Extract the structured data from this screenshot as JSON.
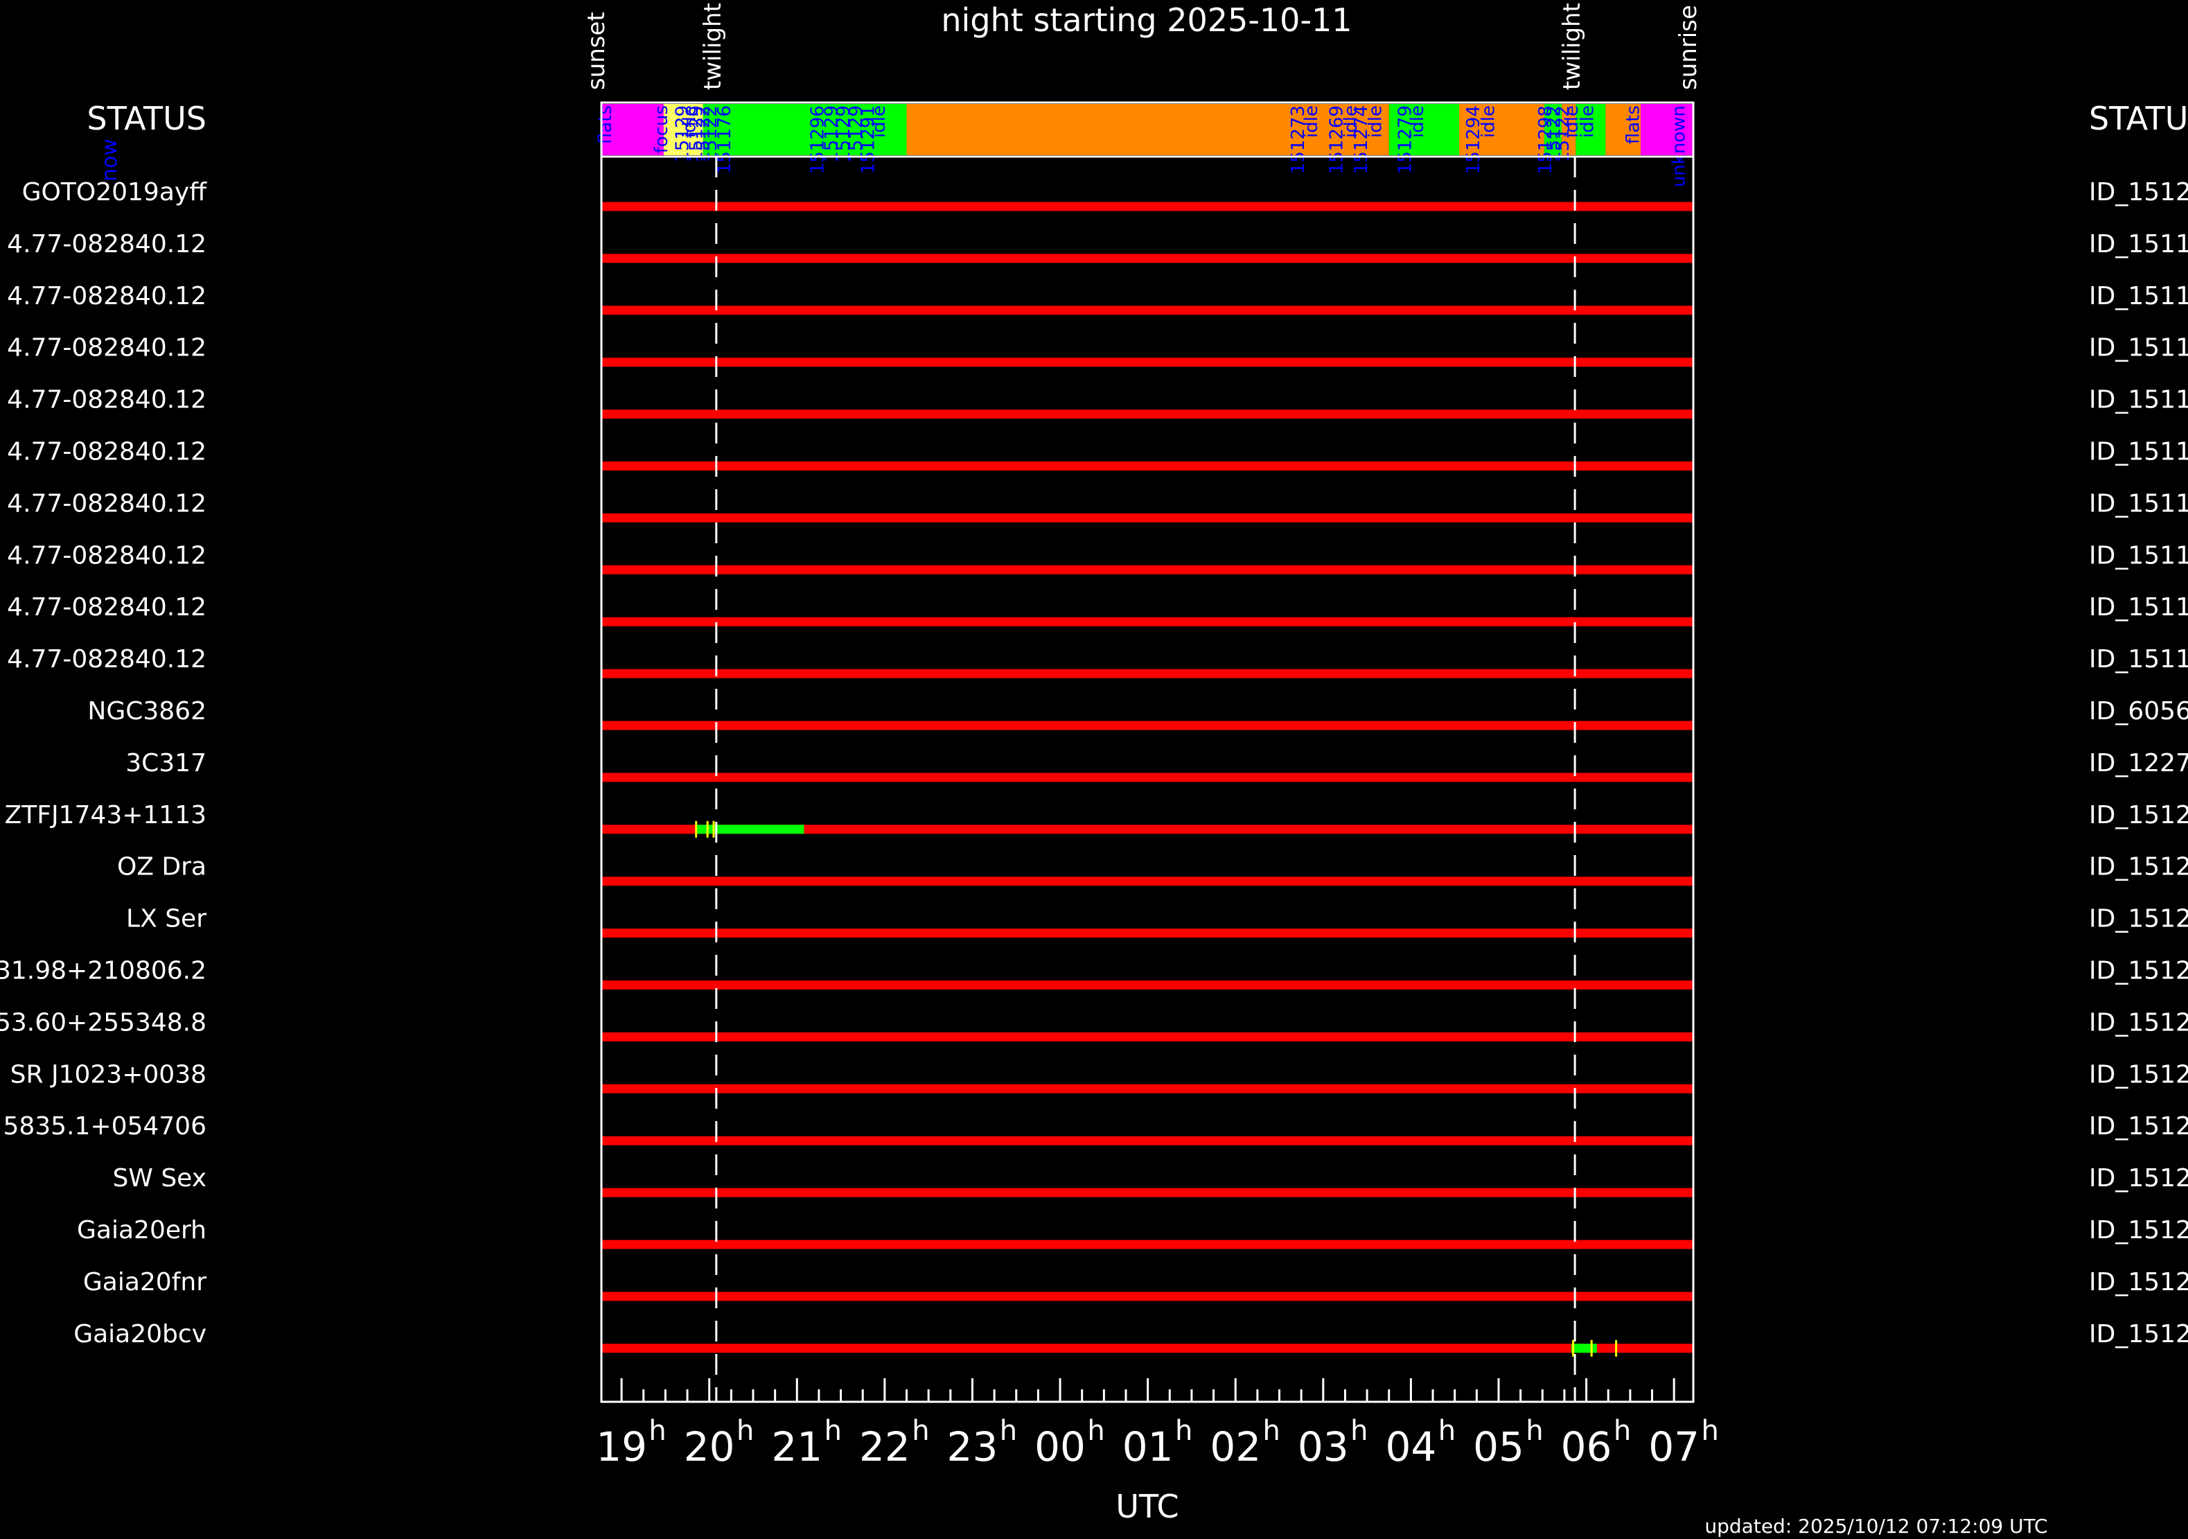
{
  "title": "night starting 2025-10-11",
  "left_header": "STATUS",
  "right_header": "STATU",
  "status_label": "now",
  "updated": "updated: 2025/10/12 07:12:09 UTC",
  "xlabel": "UTC",
  "top_labels": {
    "sunset": "sunset",
    "twilight_evening": "twilight",
    "twilight_morning": "twilight",
    "sunrise": "sunrise"
  },
  "colors": {
    "background": "#000000",
    "frame": "#ffffff",
    "target_line": "#ff0000",
    "observed": "#00ff00",
    "marker": "#ffff00",
    "flats": "#ff00ff",
    "focus": "#ffff66",
    "observing": "#00ff00",
    "idle": "#ff8800",
    "annotation": "#0000ff"
  },
  "chart_data": {
    "type": "timeline",
    "x_unit": "hours UTC from 19h",
    "x_range": [
      18.77,
      31.22
    ],
    "x_ticks": [
      {
        "hour": 19,
        "label": "19"
      },
      {
        "hour": 20,
        "label": "20"
      },
      {
        "hour": 21,
        "label": "21"
      },
      {
        "hour": 22,
        "label": "22"
      },
      {
        "hour": 23,
        "label": "23"
      },
      {
        "hour": 24,
        "label": "00"
      },
      {
        "hour": 25,
        "label": "01"
      },
      {
        "hour": 26,
        "label": "02"
      },
      {
        "hour": 27,
        "label": "03"
      },
      {
        "hour": 28,
        "label": "04"
      },
      {
        "hour": 29,
        "label": "05"
      },
      {
        "hour": 30,
        "label": "06"
      },
      {
        "hour": 31,
        "label": "07"
      }
    ],
    "tick_suffix": "h",
    "twilight_hours": [
      20.08,
      29.87
    ],
    "status_bar": [
      {
        "start": 18.77,
        "end": 19.48,
        "state": "flats"
      },
      {
        "start": 19.48,
        "end": 19.93,
        "state": "focus"
      },
      {
        "start": 19.93,
        "end": 22.25,
        "state": "observing"
      },
      {
        "start": 22.25,
        "end": 27.75,
        "state": "idle"
      },
      {
        "start": 27.75,
        "end": 28.55,
        "state": "observing"
      },
      {
        "start": 28.55,
        "end": 29.52,
        "state": "idle"
      },
      {
        "start": 29.52,
        "end": 29.72,
        "state": "observing"
      },
      {
        "start": 29.72,
        "end": 29.88,
        "state": "idle"
      },
      {
        "start": 29.88,
        "end": 30.22,
        "state": "observing"
      },
      {
        "start": 30.22,
        "end": 30.62,
        "state": "idle"
      },
      {
        "start": 30.62,
        "end": 31.22,
        "state": "flats"
      }
    ],
    "status_annotations": [
      {
        "hour": 18.88,
        "text": "flats",
        "color": "#0000ff"
      },
      {
        "hour": 19.52,
        "text": "focus",
        "color": "#0000ff"
      },
      {
        "hour": 19.76,
        "text": "15129",
        "color": "#0000ff"
      },
      {
        "hour": 19.84,
        "text": "idle",
        "color": "#0000ff"
      },
      {
        "hour": 19.92,
        "text": "15129",
        "color": "#0000ff"
      },
      {
        "hour": 20.0,
        "text": "15122",
        "color": "#0000ff"
      },
      {
        "hour": 20.08,
        "text": "15122",
        "color": "#0000ff"
      },
      {
        "hour": 20.24,
        "text": "151176",
        "color": "#0000ff"
      },
      {
        "hour": 21.3,
        "text": "151296",
        "color": "#0000ff"
      },
      {
        "hour": 21.46,
        "text": "15129",
        "color": "#0000ff"
      },
      {
        "hour": 21.6,
        "text": "15129",
        "color": "#0000ff"
      },
      {
        "hour": 21.74,
        "text": "15129",
        "color": "#0000ff"
      },
      {
        "hour": 21.88,
        "text": "151291",
        "color": "#0000ff"
      },
      {
        "hour": 22.0,
        "text": "idle",
        "color": "#0000ff"
      },
      {
        "hour": 26.78,
        "text": "151273",
        "color": "#0000ff"
      },
      {
        "hour": 26.93,
        "text": "idle",
        "color": "#0000ff"
      },
      {
        "hour": 27.22,
        "text": "151269",
        "color": "#0000ff"
      },
      {
        "hour": 27.38,
        "text": "idle",
        "color": "#0000ff"
      },
      {
        "hour": 27.5,
        "text": "151274",
        "color": "#0000ff"
      },
      {
        "hour": 27.66,
        "text": "idle",
        "color": "#0000ff"
      },
      {
        "hour": 28.0,
        "text": "151279",
        "color": "#0000ff"
      },
      {
        "hour": 28.14,
        "text": "idle",
        "color": "#0000ff"
      },
      {
        "hour": 28.78,
        "text": "151294",
        "color": "#0000ff"
      },
      {
        "hour": 28.95,
        "text": "idle",
        "color": "#0000ff"
      },
      {
        "hour": 29.6,
        "text": "151298",
        "color": "#0000ff"
      },
      {
        "hour": 29.7,
        "text": "15122",
        "color": "#0000ff"
      },
      {
        "hour": 29.8,
        "text": "15122",
        "color": "#0000ff"
      },
      {
        "hour": 29.9,
        "text": "idle",
        "color": "#0000ff"
      },
      {
        "hour": 30.08,
        "text": "idle",
        "color": "#0000ff"
      },
      {
        "hour": 30.6,
        "text": "flats",
        "color": "#0000ff"
      },
      {
        "hour": 31.12,
        "text": "unknown",
        "color": "#0000ff"
      }
    ],
    "targets": [
      {
        "name": "GOTO2019ayff",
        "id": "ID_1512",
        "observed": []
      },
      {
        "name": "4.77-082840.12",
        "id": "ID_1511",
        "observed": []
      },
      {
        "name": "4.77-082840.12",
        "id": "ID_1511",
        "observed": []
      },
      {
        "name": "4.77-082840.12",
        "id": "ID_1511",
        "observed": []
      },
      {
        "name": "4.77-082840.12",
        "id": "ID_1511",
        "observed": []
      },
      {
        "name": "4.77-082840.12",
        "id": "ID_1511",
        "observed": []
      },
      {
        "name": "4.77-082840.12",
        "id": "ID_1511",
        "observed": []
      },
      {
        "name": "4.77-082840.12",
        "id": "ID_1511",
        "observed": []
      },
      {
        "name": "4.77-082840.12",
        "id": "ID_1511",
        "observed": []
      },
      {
        "name": "4.77-082840.12",
        "id": "ID_1511",
        "observed": []
      },
      {
        "name": "NGC3862",
        "id": "ID_6056",
        "observed": []
      },
      {
        "name": "3C317",
        "id": "ID_1227",
        "observed": []
      },
      {
        "name": "ZTFJ1743+1113",
        "id": "ID_1512",
        "observed": [
          [
            19.85,
            21.08
          ]
        ],
        "markers": [
          19.85,
          19.98,
          20.05
        ]
      },
      {
        "name": "OZ Dra",
        "id": "ID_1512",
        "observed": []
      },
      {
        "name": "LX Ser",
        "id": "ID_1512",
        "observed": []
      },
      {
        "name": "31.98+210806.2",
        "id": "ID_1512",
        "observed": []
      },
      {
        "name": "53.60+255348.8",
        "id": "ID_1512",
        "observed": []
      },
      {
        "name": "SR J1023+0038",
        "id": "ID_1512",
        "observed": []
      },
      {
        "name": "5835.1+054706",
        "id": "ID_1512",
        "observed": []
      },
      {
        "name": "SW Sex",
        "id": "ID_1512",
        "observed": []
      },
      {
        "name": "Gaia20erh",
        "id": "ID_1512",
        "observed": []
      },
      {
        "name": "Gaia20fnr",
        "id": "ID_1512",
        "observed": []
      },
      {
        "name": "Gaia20bcv",
        "id": "ID_1512",
        "observed": [
          [
            29.83,
            30.12
          ]
        ],
        "markers": [
          29.85,
          30.06,
          30.34
        ]
      }
    ]
  }
}
